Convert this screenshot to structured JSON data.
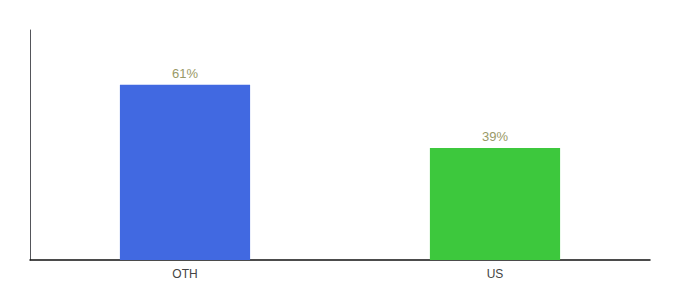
{
  "chart_data": {
    "type": "bar",
    "categories": [
      "OTH",
      "US"
    ],
    "values": [
      61,
      39
    ],
    "value_labels": [
      "61%",
      "39%"
    ],
    "data_labels": true,
    "colors": [
      "#4169e1",
      "#3dc83d"
    ],
    "ylim": [
      0,
      80
    ],
    "tick_labels": "x",
    "grid": false
  }
}
